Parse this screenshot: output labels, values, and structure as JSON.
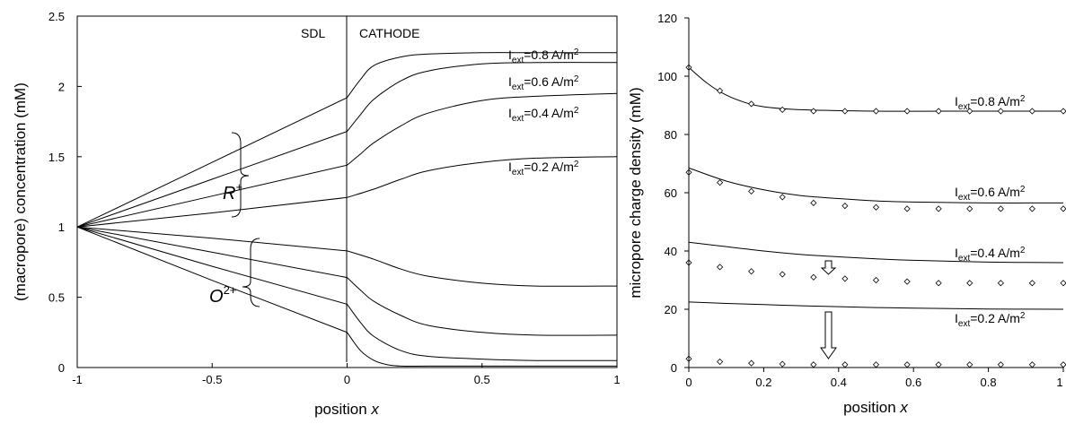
{
  "charts": [
    {
      "type": "line",
      "xlabel": "position ",
      "xlabel_var": "x",
      "ylabel": "(macropore) concentration (mM)",
      "xlim": [
        -1,
        1
      ],
      "ylim": [
        0,
        2.5
      ],
      "xticks": [
        "-1",
        "-0.5",
        "0",
        "0.5",
        "1"
      ],
      "yticks": [
        "0",
        "0.5",
        "1",
        "1.5",
        "2",
        "2.5"
      ],
      "region_labels": {
        "left": "SDL",
        "right": "CATHODE"
      },
      "series_labels": [
        {
          "pre": "I",
          "sub": "ext",
          "post": "=0.8 A/m",
          "sup": "2"
        },
        {
          "pre": "I",
          "sub": "ext",
          "post": "=0.6 A/m",
          "sup": "2"
        },
        {
          "pre": "I",
          "sub": "ext",
          "post": "=0.4 A/m",
          "sup": "2"
        },
        {
          "pre": "I",
          "sub": "ext",
          "post": "=0.2 A/m",
          "sup": "2"
        }
      ],
      "species_labels": [
        {
          "base": "R",
          "sup": "+"
        },
        {
          "base": "O",
          "sup": "2+"
        }
      ]
    },
    {
      "type": "scatter",
      "xlabel": "position ",
      "xlabel_var": "x",
      "ylabel": "micropore charge density (mM)",
      "xlim": [
        0,
        1
      ],
      "ylim": [
        0,
        120
      ],
      "xticks": [
        "0",
        "0.2",
        "0.4",
        "0.6",
        "0.8",
        "1"
      ],
      "yticks": [
        "0",
        "20",
        "40",
        "60",
        "80",
        "100",
        "120"
      ],
      "series_labels": [
        {
          "pre": "I",
          "sub": "ext",
          "post": "=0.8 A/m",
          "sup": "2"
        },
        {
          "pre": "I",
          "sub": "ext",
          "post": "=0.6 A/m",
          "sup": "2"
        },
        {
          "pre": "I",
          "sub": "ext",
          "post": "=0.4 A/m",
          "sup": "2"
        },
        {
          "pre": "I",
          "sub": "ext",
          "post": "=0.2 A/m",
          "sup": "2"
        }
      ]
    }
  ],
  "chart_data": [
    {
      "type": "line",
      "xlim": [
        -1,
        1
      ],
      "ylim": [
        0,
        2.5
      ],
      "series": [
        {
          "name": "R+ 0.8",
          "x": [
            -1,
            -0.5,
            0,
            0.05,
            0.1,
            0.2,
            0.3,
            0.5,
            0.7,
            1
          ],
          "y": [
            1,
            1.46,
            1.92,
            2.05,
            2.15,
            2.21,
            2.23,
            2.24,
            2.24,
            2.24
          ]
        },
        {
          "name": "R+ 0.6",
          "x": [
            -1,
            -0.5,
            0,
            0.05,
            0.1,
            0.2,
            0.3,
            0.5,
            0.7,
            1
          ],
          "y": [
            1,
            1.34,
            1.68,
            1.8,
            1.91,
            2.04,
            2.11,
            2.16,
            2.17,
            2.17
          ]
        },
        {
          "name": "R+ 0.4",
          "x": [
            -1,
            -0.5,
            0,
            0.05,
            0.1,
            0.2,
            0.3,
            0.5,
            0.7,
            1
          ],
          "y": [
            1,
            1.22,
            1.44,
            1.52,
            1.6,
            1.72,
            1.81,
            1.9,
            1.93,
            1.95
          ]
        },
        {
          "name": "R+ 0.2",
          "x": [
            -1,
            -0.5,
            0,
            0.1,
            0.2,
            0.3,
            0.5,
            0.7,
            1
          ],
          "y": [
            1,
            1.1,
            1.21,
            1.27,
            1.34,
            1.4,
            1.46,
            1.49,
            1.5
          ]
        },
        {
          "name": "O2+ 0.2",
          "x": [
            -1,
            -0.5,
            0,
            0.1,
            0.2,
            0.3,
            0.5,
            0.7,
            1
          ],
          "y": [
            1,
            0.92,
            0.83,
            0.77,
            0.7,
            0.65,
            0.6,
            0.58,
            0.58
          ]
        },
        {
          "name": "O2+ 0.4",
          "x": [
            -1,
            -0.5,
            0,
            0.05,
            0.1,
            0.2,
            0.3,
            0.5,
            0.7,
            1
          ],
          "y": [
            1,
            0.82,
            0.64,
            0.55,
            0.47,
            0.37,
            0.3,
            0.25,
            0.23,
            0.23
          ]
        },
        {
          "name": "O2+ 0.6",
          "x": [
            -1,
            -0.5,
            0,
            0.05,
            0.1,
            0.2,
            0.3,
            0.5,
            0.7,
            1
          ],
          "y": [
            1,
            0.72,
            0.45,
            0.32,
            0.22,
            0.12,
            0.08,
            0.06,
            0.05,
            0.05
          ]
        },
        {
          "name": "O2+ 0.8",
          "x": [
            -1,
            -0.5,
            0,
            0.05,
            0.1,
            0.15,
            0.2,
            0.3,
            0.5,
            1
          ],
          "y": [
            1,
            0.62,
            0.25,
            0.12,
            0.05,
            0.02,
            0.01,
            0.01,
            0.01,
            0.01
          ]
        }
      ]
    },
    {
      "type": "scatter",
      "xlim": [
        0,
        1
      ],
      "ylim": [
        0,
        120
      ],
      "lines": [
        {
          "name": "0.8",
          "x": [
            0,
            0.05,
            0.1,
            0.15,
            0.2,
            0.3,
            0.5,
            0.7,
            1
          ],
          "y": [
            103,
            97.5,
            93.5,
            91,
            89.5,
            88.5,
            88,
            88,
            88
          ]
        },
        {
          "name": "0.6",
          "x": [
            0,
            0.1,
            0.2,
            0.3,
            0.4,
            0.5,
            0.6,
            0.8,
            1
          ],
          "y": [
            68.5,
            64,
            61,
            59,
            58,
            57.2,
            56.8,
            56.5,
            56.5
          ]
        },
        {
          "name": "0.4",
          "x": [
            0,
            0.1,
            0.2,
            0.3,
            0.4,
            0.5,
            0.6,
            0.8,
            1
          ],
          "y": [
            43,
            41.5,
            40,
            38.8,
            38,
            37.3,
            36.8,
            36.2,
            36
          ]
        },
        {
          "name": "0.2",
          "x": [
            0,
            0.1,
            0.2,
            0.3,
            0.4,
            0.5,
            0.6,
            0.8,
            1
          ],
          "y": [
            22.5,
            22,
            21.6,
            21.2,
            20.9,
            20.6,
            20.4,
            20.1,
            20
          ]
        }
      ],
      "points": [
        {
          "name": "0.8",
          "x": [
            0,
            0.083,
            0.167,
            0.25,
            0.333,
            0.417,
            0.5,
            0.583,
            0.667,
            0.75,
            0.833,
            0.917,
            1
          ],
          "y": [
            103,
            95,
            90.5,
            88.5,
            88,
            88,
            88,
            88,
            88,
            88,
            88,
            88,
            88
          ]
        },
        {
          "name": "0.6",
          "x": [
            0,
            0.083,
            0.167,
            0.25,
            0.333,
            0.417,
            0.5,
            0.583,
            0.667,
            0.75,
            0.833,
            0.917,
            1
          ],
          "y": [
            67,
            63.5,
            60.5,
            58.5,
            56.5,
            55.5,
            55,
            54.5,
            54.5,
            54.5,
            54.5,
            54.5,
            54.5
          ]
        },
        {
          "name": "0.4",
          "x": [
            0,
            0.083,
            0.167,
            0.25,
            0.333,
            0.417,
            0.5,
            0.583,
            0.667,
            0.75,
            0.833,
            0.917,
            1
          ],
          "y": [
            36,
            34.5,
            33,
            32,
            31,
            30.5,
            30,
            29.5,
            29,
            29,
            29,
            29,
            29
          ]
        },
        {
          "name": "0.2",
          "x": [
            0,
            0.083,
            0.167,
            0.25,
            0.333,
            0.417,
            0.5,
            0.583,
            0.667,
            0.75,
            0.833,
            0.917,
            1
          ],
          "y": [
            3,
            2,
            1.5,
            1.2,
            1,
            1,
            1,
            1,
            1,
            1,
            1,
            1,
            1
          ]
        }
      ]
    }
  ]
}
